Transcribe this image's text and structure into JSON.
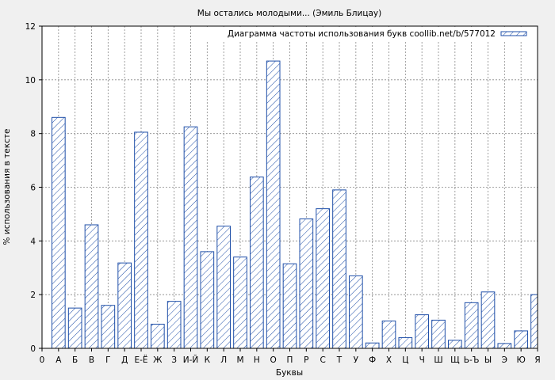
{
  "chart_data": {
    "type": "bar",
    "title": "Мы остались молодыми... (Эмиль Блицау)",
    "xlabel": "Буквы",
    "ylabel": "% использования в тексте",
    "ylim": [
      0,
      12
    ],
    "yticks": [
      0,
      2,
      4,
      6,
      8,
      10,
      12
    ],
    "grid": true,
    "legend_position": "top-right",
    "xlim": [
      0,
      30
    ],
    "x_start_label": "0",
    "categories": [
      "А",
      "Б",
      "В",
      "Г",
      "Д",
      "Е-Ё",
      "Ж",
      "З",
      "И-Й",
      "К",
      "Л",
      "М",
      "Н",
      "О",
      "П",
      "Р",
      "С",
      "Т",
      "У",
      "Ф",
      "Х",
      "Ц",
      "Ч",
      "Ш",
      "Щ",
      "Ь-Ъ",
      "Ы",
      "Э",
      "Ю",
      "Я"
    ],
    "series": [
      {
        "name": "Диаграмма частоты использования букв coollib.net/b/577012",
        "color": "#1f4fa8",
        "hatch": "diagonal",
        "values": [
          8.6,
          1.5,
          4.6,
          1.6,
          3.18,
          8.05,
          0.9,
          1.75,
          8.25,
          3.6,
          4.55,
          3.4,
          6.38,
          10.7,
          3.15,
          4.82,
          5.2,
          5.9,
          2.7,
          0.2,
          1.02,
          0.4,
          1.25,
          1.05,
          0.3,
          1.7,
          2.1,
          0.18,
          0.65,
          2.0
        ]
      }
    ]
  }
}
